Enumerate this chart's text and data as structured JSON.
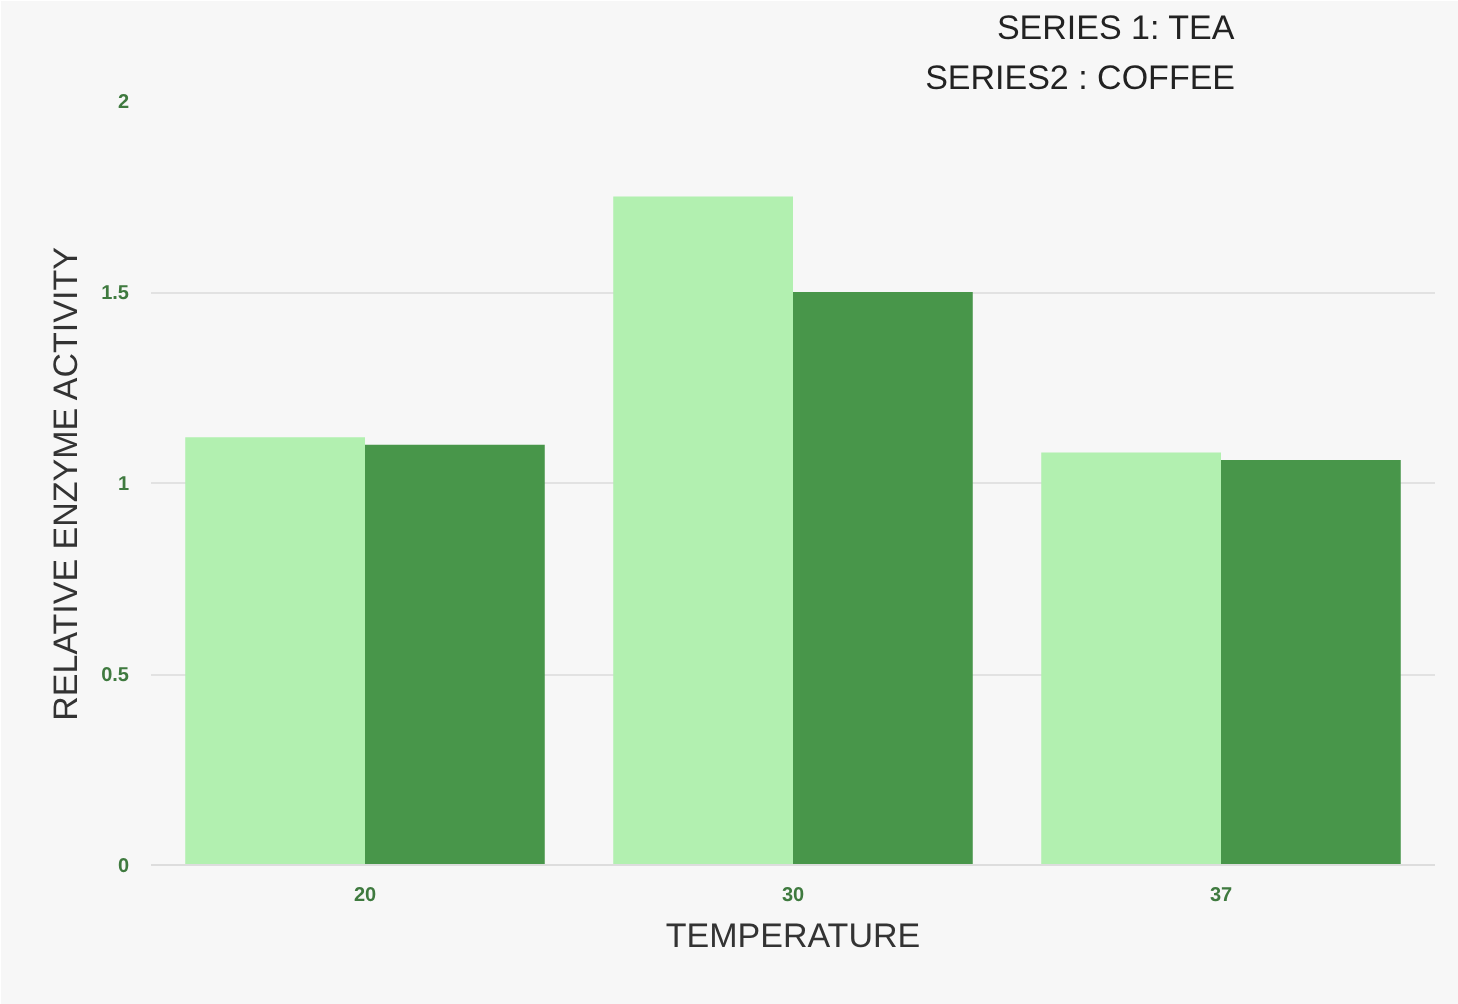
{
  "chart_data": {
    "type": "bar",
    "xlabel": "TEMPERATURE",
    "ylabel": "RELATIVE ENZYME ACTIVITY",
    "annotations": [
      "SERIES 1: TEA",
      "SERIES2 : COFFEE"
    ],
    "categories": [
      "20",
      "30",
      "37"
    ],
    "series": [
      {
        "color": "#b2f0b0",
        "values": [
          1.12,
          1.75,
          1.08
        ]
      },
      {
        "color": "#48964a",
        "values": [
          1.1,
          1.5,
          1.06
        ]
      }
    ],
    "ylim": [
      0,
      2
    ],
    "yticks": [
      0,
      0.5,
      1,
      1.5,
      2
    ],
    "grid": "y"
  }
}
